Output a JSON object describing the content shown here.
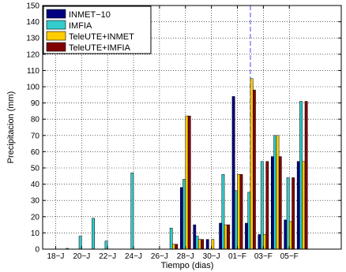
{
  "chart_data": {
    "type": "bar",
    "xlabel": "Tiempo (dias)",
    "ylabel": "Precipitacion (mm)",
    "ylim": [
      0,
      150
    ],
    "yticks": [
      0,
      10,
      20,
      30,
      40,
      50,
      60,
      70,
      80,
      90,
      100,
      110,
      120,
      130,
      140,
      150
    ],
    "xlim": [
      17,
      40
    ],
    "xticks": [
      {
        "x": 18,
        "label": "18−J"
      },
      {
        "x": 20,
        "label": "20−J"
      },
      {
        "x": 22,
        "label": "22−J"
      },
      {
        "x": 24,
        "label": "24−J"
      },
      {
        "x": 26,
        "label": "26−J"
      },
      {
        "x": 28,
        "label": "28−J"
      },
      {
        "x": 30,
        "label": "30−J"
      },
      {
        "x": 32,
        "label": "01−F"
      },
      {
        "x": 34,
        "label": "03−F"
      },
      {
        "x": 36,
        "label": "05−F"
      }
    ],
    "grid": true,
    "legend_position": "top-left",
    "vline_x": 33,
    "vline_color": "#6666ff",
    "days": [
      18,
      19,
      20,
      21,
      22,
      23,
      24,
      25,
      26,
      27,
      28,
      29,
      30,
      31,
      32,
      33,
      34,
      35,
      36,
      37
    ],
    "series": [
      {
        "name": "INMET−10",
        "color": "#000080",
        "values": [
          0,
          0,
          0,
          0,
          0,
          0,
          0,
          0,
          0,
          0,
          38,
          15,
          6,
          16,
          94,
          16,
          9,
          57,
          18,
          54
        ]
      },
      {
        "name": "IMFIA",
        "color": "#33cccc",
        "values": [
          0,
          0.5,
          8,
          19,
          5,
          0,
          47,
          0,
          0,
          13,
          43,
          8,
          0,
          46,
          36,
          35,
          54,
          70,
          44,
          91
        ]
      },
      {
        "name": "TeleUTE+INMET",
        "color": "#ffcc00",
        "values": [
          0,
          0,
          0,
          0,
          0,
          0,
          0,
          0,
          0,
          3,
          82,
          6,
          6,
          15,
          46,
          105,
          9,
          70,
          17,
          54
        ]
      },
      {
        "name": "TeleUTE+IMFIA",
        "color": "#800000",
        "values": [
          0,
          0,
          0,
          0,
          0,
          0,
          0,
          0,
          0,
          3,
          82,
          6,
          0,
          15,
          46,
          98,
          54,
          57,
          44,
          91
        ]
      }
    ]
  }
}
